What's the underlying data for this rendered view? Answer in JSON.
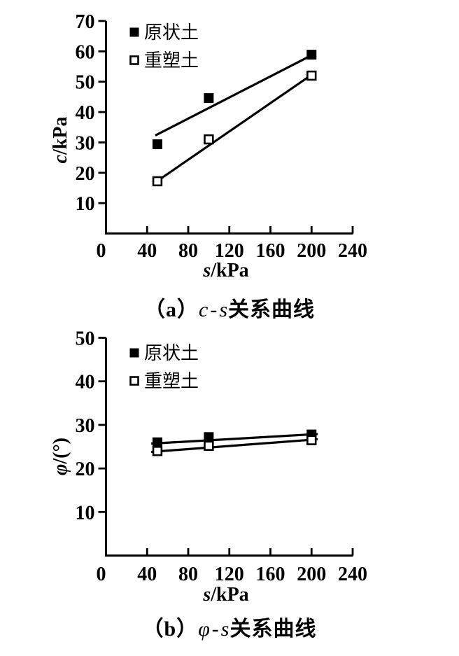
{
  "figure": {
    "background_color": "#ffffff",
    "ink_color": "#000000",
    "description_labels": [
      "原状土",
      "重塑土"
    ]
  },
  "chart_data": [
    {
      "name": "a",
      "type": "scatter",
      "title": "（a）c - s关系曲线",
      "caption": {
        "index": "（a）",
        "var1": "c",
        "sep": "-",
        "var2": "s",
        "suffix": "关系曲线"
      },
      "xlabel": "s/kPa",
      "ylabel": "c/kPa",
      "x_axis": {
        "title_var": "s",
        "title_rest": "/kPa",
        "tick_values": [
          0,
          40,
          80,
          120,
          160,
          200,
          240
        ],
        "tick_labels": [
          "0",
          "40",
          "80",
          "120",
          "160",
          "200",
          "240"
        ],
        "range": [
          0,
          240
        ]
      },
      "y_axis": {
        "title_var": "c",
        "title_rest": "/kPa",
        "tick_values": [
          10,
          20,
          30,
          40,
          50,
          60,
          70
        ],
        "tick_labels": [
          "10",
          "20",
          "30",
          "40",
          "50",
          "60",
          "70"
        ],
        "range": [
          0,
          70
        ]
      },
      "legend": {
        "position": "top-left-inside",
        "items": [
          {
            "label": "原状土",
            "marker": "filled-square"
          },
          {
            "label": "重塑土",
            "marker": "open-square"
          }
        ]
      },
      "grid": false,
      "series": [
        {
          "name": "原状土",
          "marker": "filled-square",
          "points": [
            [
              50,
              29.4
            ],
            [
              100,
              44.6
            ],
            [
              200,
              58.9
            ]
          ],
          "fit_line": [
            [
              48,
              32.3
            ],
            [
              204,
              59.4
            ]
          ]
        },
        {
          "name": "重塑土",
          "marker": "open-square",
          "points": [
            [
              50,
              17.2
            ],
            [
              100,
              31.0
            ],
            [
              200,
              52.0
            ]
          ],
          "fit_line": [
            [
              53,
              18.0
            ],
            [
              204,
              53.2
            ]
          ]
        }
      ]
    },
    {
      "name": "b",
      "type": "scatter",
      "title": "（b）φ - s关系曲线",
      "caption": {
        "index": "（b）",
        "var1": "φ",
        "sep": "-",
        "var2": "s",
        "suffix": "关系曲线"
      },
      "xlabel": "s/kPa",
      "ylabel": "φ/(°)",
      "x_axis": {
        "title_var": "s",
        "title_rest": "/kPa",
        "tick_values": [
          0,
          40,
          80,
          120,
          160,
          200,
          240
        ],
        "tick_labels": [
          "0",
          "40",
          "80",
          "120",
          "160",
          "200",
          "240"
        ],
        "range": [
          0,
          240
        ]
      },
      "y_axis": {
        "title_var": "φ",
        "title_rest": "/(°)",
        "tick_values": [
          10,
          20,
          30,
          40,
          50
        ],
        "tick_labels": [
          "10",
          "20",
          "30",
          "40",
          "50"
        ],
        "range": [
          0,
          50
        ]
      },
      "legend": {
        "position": "top-left-inside",
        "items": [
          {
            "label": "原状土",
            "marker": "filled-square"
          },
          {
            "label": "重塑土",
            "marker": "open-square"
          }
        ]
      },
      "grid": false,
      "series": [
        {
          "name": "原状土",
          "marker": "filled-square",
          "points": [
            [
              50,
              26.0
            ],
            [
              100,
              27.2
            ],
            [
              200,
              27.8
            ]
          ],
          "fit_line": [
            [
              44,
              25.7
            ],
            [
              206,
              27.9
            ]
          ]
        },
        {
          "name": "重塑土",
          "marker": "open-square",
          "points": [
            [
              50,
              24.0
            ],
            [
              100,
              25.2
            ],
            [
              200,
              26.5
            ]
          ],
          "fit_line": [
            [
              44,
              23.8
            ],
            [
              206,
              26.7
            ]
          ]
        }
      ]
    }
  ]
}
